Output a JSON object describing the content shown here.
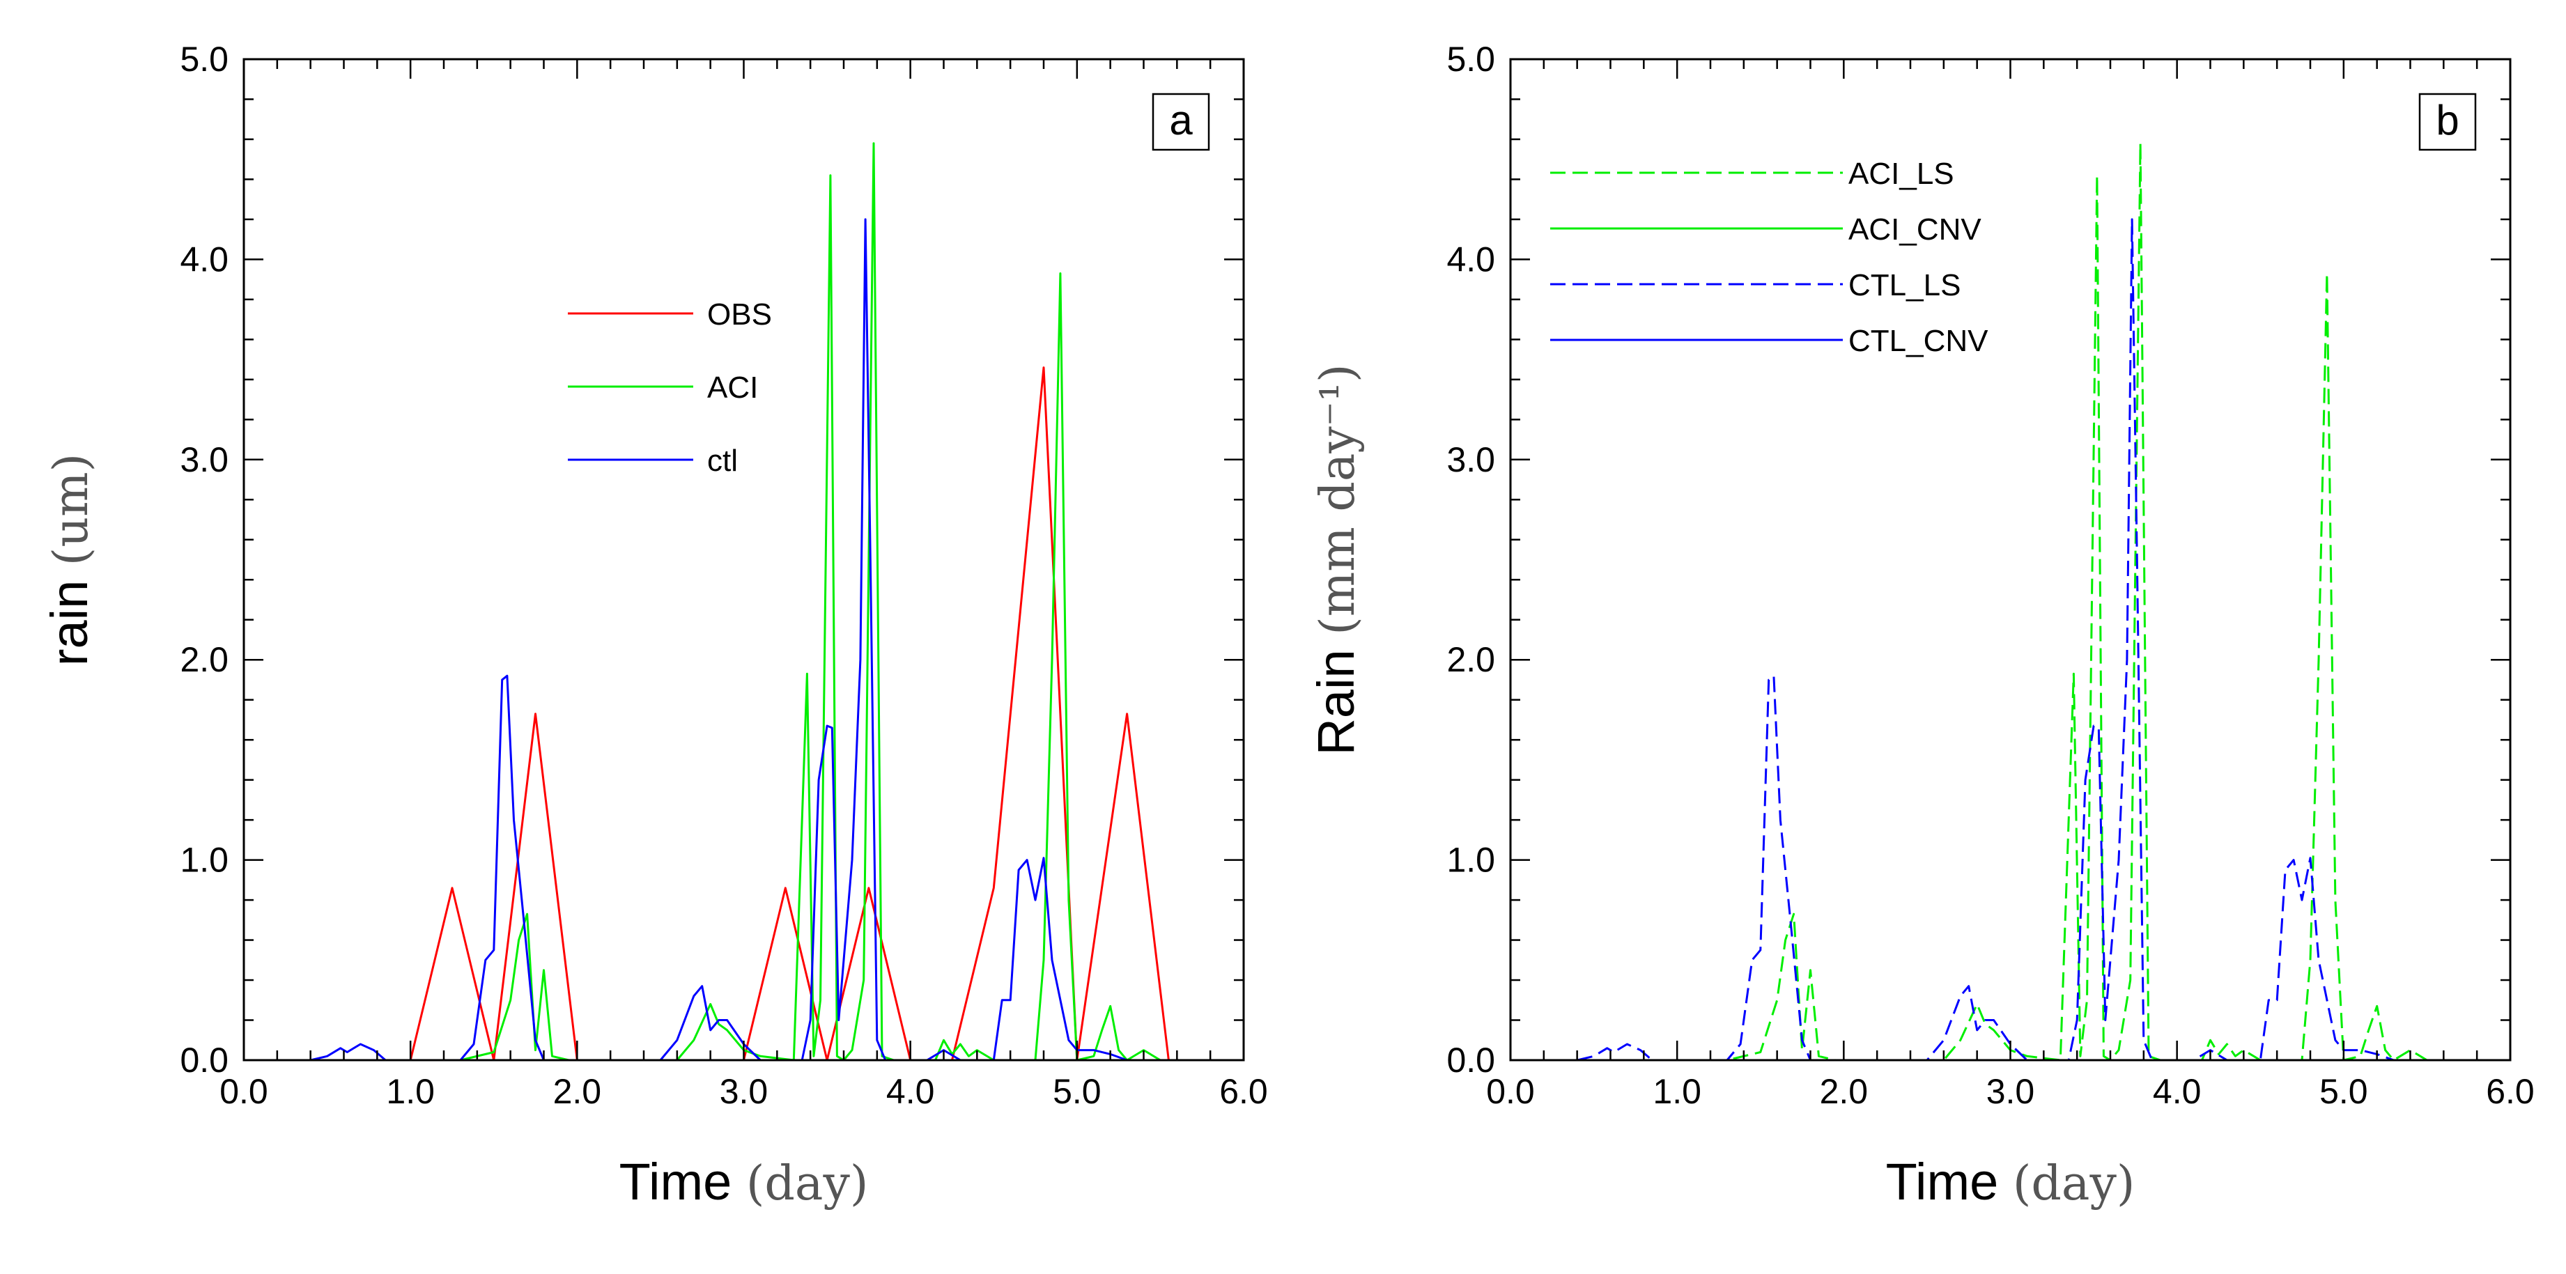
{
  "chart_data": [
    {
      "type": "line",
      "panel_label": "a",
      "xlabel": "Time",
      "xlabel_unit": "(day)",
      "ylabel": "rain",
      "ylabel_unit": "(um)",
      "xlim": [
        0,
        6
      ],
      "ylim": [
        0,
        5
      ],
      "x_ticks": [
        "0.0",
        "1.0",
        "2.0",
        "3.0",
        "4.0",
        "5.0",
        "6.0"
      ],
      "y_ticks": [
        "0.0",
        "1.0",
        "2.0",
        "3.0",
        "4.0",
        "5.0"
      ],
      "legend": "upper-center",
      "series": [
        {
          "name": "OBS",
          "color": "#ff0000",
          "dash": "solid",
          "points": [
            [
              0,
              0
            ],
            [
              1.0,
              0
            ],
            [
              1.25,
              0.86
            ],
            [
              1.5,
              0
            ],
            [
              1.75,
              1.73
            ],
            [
              2.0,
              0
            ],
            [
              3.0,
              0
            ],
            [
              3.25,
              0.86
            ],
            [
              3.5,
              0
            ],
            [
              3.75,
              0.86
            ],
            [
              4.0,
              0
            ],
            [
              4.25,
              0
            ],
            [
              4.5,
              0.86
            ],
            [
              4.8,
              3.46
            ],
            [
              5.0,
              0
            ],
            [
              5.3,
              1.73
            ],
            [
              5.55,
              0
            ],
            [
              5.6,
              0
            ]
          ]
        },
        {
          "name": "ACI",
          "color": "#00ee00",
          "dash": "solid",
          "points": [
            [
              0,
              0
            ],
            [
              1.3,
              0
            ],
            [
              1.5,
              0.04
            ],
            [
              1.6,
              0.3
            ],
            [
              1.65,
              0.6
            ],
            [
              1.7,
              0.73
            ],
            [
              1.75,
              0.05
            ],
            [
              1.8,
              0.45
            ],
            [
              1.85,
              0.02
            ],
            [
              1.95,
              0
            ],
            [
              2.6,
              0
            ],
            [
              2.7,
              0.1
            ],
            [
              2.8,
              0.28
            ],
            [
              2.85,
              0.18
            ],
            [
              2.9,
              0.15
            ],
            [
              3.0,
              0.05
            ],
            [
              3.1,
              0.02
            ],
            [
              3.3,
              0
            ],
            [
              3.38,
              1.93
            ],
            [
              3.42,
              0.02
            ],
            [
              3.46,
              0.3
            ],
            [
              3.52,
              4.42
            ],
            [
              3.56,
              0.02
            ],
            [
              3.6,
              0
            ],
            [
              3.65,
              0.05
            ],
            [
              3.72,
              0.4
            ],
            [
              3.78,
              4.58
            ],
            [
              3.83,
              0.02
            ],
            [
              3.9,
              0
            ],
            [
              4.15,
              0
            ],
            [
              4.2,
              0.1
            ],
            [
              4.25,
              0.03
            ],
            [
              4.3,
              0.08
            ],
            [
              4.35,
              0.02
            ],
            [
              4.4,
              0.05
            ],
            [
              4.5,
              0
            ],
            [
              4.75,
              0
            ],
            [
              4.8,
              0.5
            ],
            [
              4.85,
              2.0
            ],
            [
              4.9,
              3.93
            ],
            [
              4.95,
              0.8
            ],
            [
              5.0,
              0
            ],
            [
              5.1,
              0.02
            ],
            [
              5.15,
              0.15
            ],
            [
              5.2,
              0.27
            ],
            [
              5.25,
              0.05
            ],
            [
              5.3,
              0
            ],
            [
              5.4,
              0.05
            ],
            [
              5.5,
              0
            ],
            [
              5.6,
              0
            ]
          ]
        },
        {
          "name": "ctl",
          "color": "#0000ff",
          "dash": "solid",
          "points": [
            [
              0,
              0
            ],
            [
              0.4,
              0
            ],
            [
              0.5,
              0.02
            ],
            [
              0.58,
              0.06
            ],
            [
              0.62,
              0.04
            ],
            [
              0.7,
              0.08
            ],
            [
              0.78,
              0.05
            ],
            [
              0.85,
              0
            ],
            [
              1.3,
              0
            ],
            [
              1.38,
              0.08
            ],
            [
              1.45,
              0.5
            ],
            [
              1.5,
              0.55
            ],
            [
              1.55,
              1.9
            ],
            [
              1.58,
              1.92
            ],
            [
              1.62,
              1.2
            ],
            [
              1.68,
              0.7
            ],
            [
              1.75,
              0.1
            ],
            [
              1.8,
              0
            ],
            [
              2.5,
              0
            ],
            [
              2.6,
              0.1
            ],
            [
              2.7,
              0.32
            ],
            [
              2.75,
              0.37
            ],
            [
              2.8,
              0.15
            ],
            [
              2.85,
              0.2
            ],
            [
              2.9,
              0.2
            ],
            [
              3.0,
              0.08
            ],
            [
              3.1,
              0
            ],
            [
              3.35,
              0
            ],
            [
              3.4,
              0.2
            ],
            [
              3.45,
              1.4
            ],
            [
              3.5,
              1.67
            ],
            [
              3.53,
              1.66
            ],
            [
              3.57,
              0.2
            ],
            [
              3.6,
              0.5
            ],
            [
              3.65,
              1.0
            ],
            [
              3.7,
              2.0
            ],
            [
              3.73,
              4.2
            ],
            [
              3.76,
              2.5
            ],
            [
              3.8,
              0.1
            ],
            [
              3.85,
              0
            ],
            [
              4.1,
              0
            ],
            [
              4.2,
              0.05
            ],
            [
              4.3,
              0
            ],
            [
              4.5,
              0
            ],
            [
              4.55,
              0.3
            ],
            [
              4.6,
              0.3
            ],
            [
              4.65,
              0.95
            ],
            [
              4.7,
              1.0
            ],
            [
              4.75,
              0.8
            ],
            [
              4.8,
              1.01
            ],
            [
              4.85,
              0.5
            ],
            [
              4.95,
              0.1
            ],
            [
              5.0,
              0.05
            ],
            [
              5.1,
              0.05
            ],
            [
              5.2,
              0.03
            ],
            [
              5.3,
              0
            ],
            [
              5.6,
              0
            ]
          ]
        }
      ]
    },
    {
      "type": "line",
      "panel_label": "b",
      "xlabel": "Time",
      "xlabel_unit": "(day)",
      "ylabel": "Rain",
      "ylabel_unit": "(mm day⁻¹)",
      "xlim": [
        0,
        6
      ],
      "ylim": [
        0,
        5
      ],
      "x_ticks": [
        "0.0",
        "1.0",
        "2.0",
        "3.0",
        "4.0",
        "5.0",
        "6.0"
      ],
      "y_ticks": [
        "0.0",
        "1.0",
        "2.0",
        "3.0",
        "4.0",
        "5.0"
      ],
      "legend": "upper-left",
      "series": [
        {
          "name": "ACI_LS",
          "color": "#00ee00",
          "dash": "dashed",
          "points": [
            [
              0,
              0
            ],
            [
              1.3,
              0
            ],
            [
              1.5,
              0.04
            ],
            [
              1.6,
              0.3
            ],
            [
              1.65,
              0.6
            ],
            [
              1.7,
              0.73
            ],
            [
              1.75,
              0.05
            ],
            [
              1.8,
              0.45
            ],
            [
              1.85,
              0.02
            ],
            [
              1.95,
              0
            ],
            [
              2.6,
              0
            ],
            [
              2.7,
              0.1
            ],
            [
              2.8,
              0.28
            ],
            [
              2.85,
              0.18
            ],
            [
              2.9,
              0.15
            ],
            [
              3.0,
              0.05
            ],
            [
              3.1,
              0.02
            ],
            [
              3.3,
              0
            ],
            [
              3.38,
              1.93
            ],
            [
              3.42,
              0.02
            ],
            [
              3.46,
              0.3
            ],
            [
              3.52,
              4.42
            ],
            [
              3.56,
              0.02
            ],
            [
              3.6,
              0
            ],
            [
              3.65,
              0.05
            ],
            [
              3.72,
              0.4
            ],
            [
              3.78,
              4.58
            ],
            [
              3.83,
              0.02
            ],
            [
              3.9,
              0
            ],
            [
              4.15,
              0
            ],
            [
              4.2,
              0.1
            ],
            [
              4.25,
              0.03
            ],
            [
              4.3,
              0.08
            ],
            [
              4.35,
              0.02
            ],
            [
              4.4,
              0.05
            ],
            [
              4.5,
              0
            ],
            [
              4.75,
              0
            ],
            [
              4.8,
              0.5
            ],
            [
              4.85,
              2.0
            ],
            [
              4.9,
              3.93
            ],
            [
              4.95,
              0.8
            ],
            [
              5.0,
              0
            ],
            [
              5.1,
              0.02
            ],
            [
              5.15,
              0.15
            ],
            [
              5.2,
              0.27
            ],
            [
              5.25,
              0.05
            ],
            [
              5.3,
              0
            ],
            [
              5.4,
              0.05
            ],
            [
              5.5,
              0
            ],
            [
              5.6,
              0
            ]
          ]
        },
        {
          "name": "ACI_CNV",
          "color": "#00ee00",
          "dash": "solid",
          "points": [
            [
              0,
              0
            ],
            [
              5.6,
              0
            ]
          ]
        },
        {
          "name": "CTL_LS",
          "color": "#0000ff",
          "dash": "dashed",
          "points": [
            [
              0,
              0
            ],
            [
              0.4,
              0
            ],
            [
              0.5,
              0.02
            ],
            [
              0.58,
              0.06
            ],
            [
              0.62,
              0.04
            ],
            [
              0.7,
              0.08
            ],
            [
              0.78,
              0.05
            ],
            [
              0.85,
              0
            ],
            [
              1.3,
              0
            ],
            [
              1.38,
              0.08
            ],
            [
              1.45,
              0.5
            ],
            [
              1.5,
              0.55
            ],
            [
              1.55,
              1.9
            ],
            [
              1.58,
              1.92
            ],
            [
              1.62,
              1.2
            ],
            [
              1.68,
              0.7
            ],
            [
              1.75,
              0.1
            ],
            [
              1.8,
              0
            ],
            [
              2.5,
              0
            ],
            [
              2.6,
              0.1
            ],
            [
              2.7,
              0.32
            ],
            [
              2.75,
              0.37
            ],
            [
              2.8,
              0.15
            ],
            [
              2.85,
              0.2
            ],
            [
              2.9,
              0.2
            ],
            [
              3.0,
              0.08
            ],
            [
              3.1,
              0
            ],
            [
              3.35,
              0
            ],
            [
              3.4,
              0.2
            ],
            [
              3.45,
              1.4
            ],
            [
              3.5,
              1.67
            ],
            [
              3.53,
              1.66
            ],
            [
              3.57,
              0.2
            ],
            [
              3.6,
              0.5
            ],
            [
              3.65,
              1.0
            ],
            [
              3.7,
              2.0
            ],
            [
              3.73,
              4.2
            ],
            [
              3.76,
              2.5
            ],
            [
              3.8,
              0.1
            ],
            [
              3.85,
              0
            ],
            [
              4.1,
              0
            ],
            [
              4.2,
              0.05
            ],
            [
              4.3,
              0
            ],
            [
              4.5,
              0
            ],
            [
              4.55,
              0.3
            ],
            [
              4.6,
              0.3
            ],
            [
              4.65,
              0.95
            ],
            [
              4.7,
              1.0
            ],
            [
              4.75,
              0.8
            ],
            [
              4.8,
              1.01
            ],
            [
              4.85,
              0.5
            ],
            [
              4.95,
              0.1
            ],
            [
              5.0,
              0.05
            ],
            [
              5.1,
              0.05
            ],
            [
              5.2,
              0.03
            ],
            [
              5.3,
              0
            ],
            [
              5.6,
              0
            ]
          ]
        },
        {
          "name": "CTL_CNV",
          "color": "#0000ff",
          "dash": "solid",
          "points": [
            [
              0,
              0
            ],
            [
              5.6,
              0
            ]
          ]
        }
      ]
    }
  ]
}
